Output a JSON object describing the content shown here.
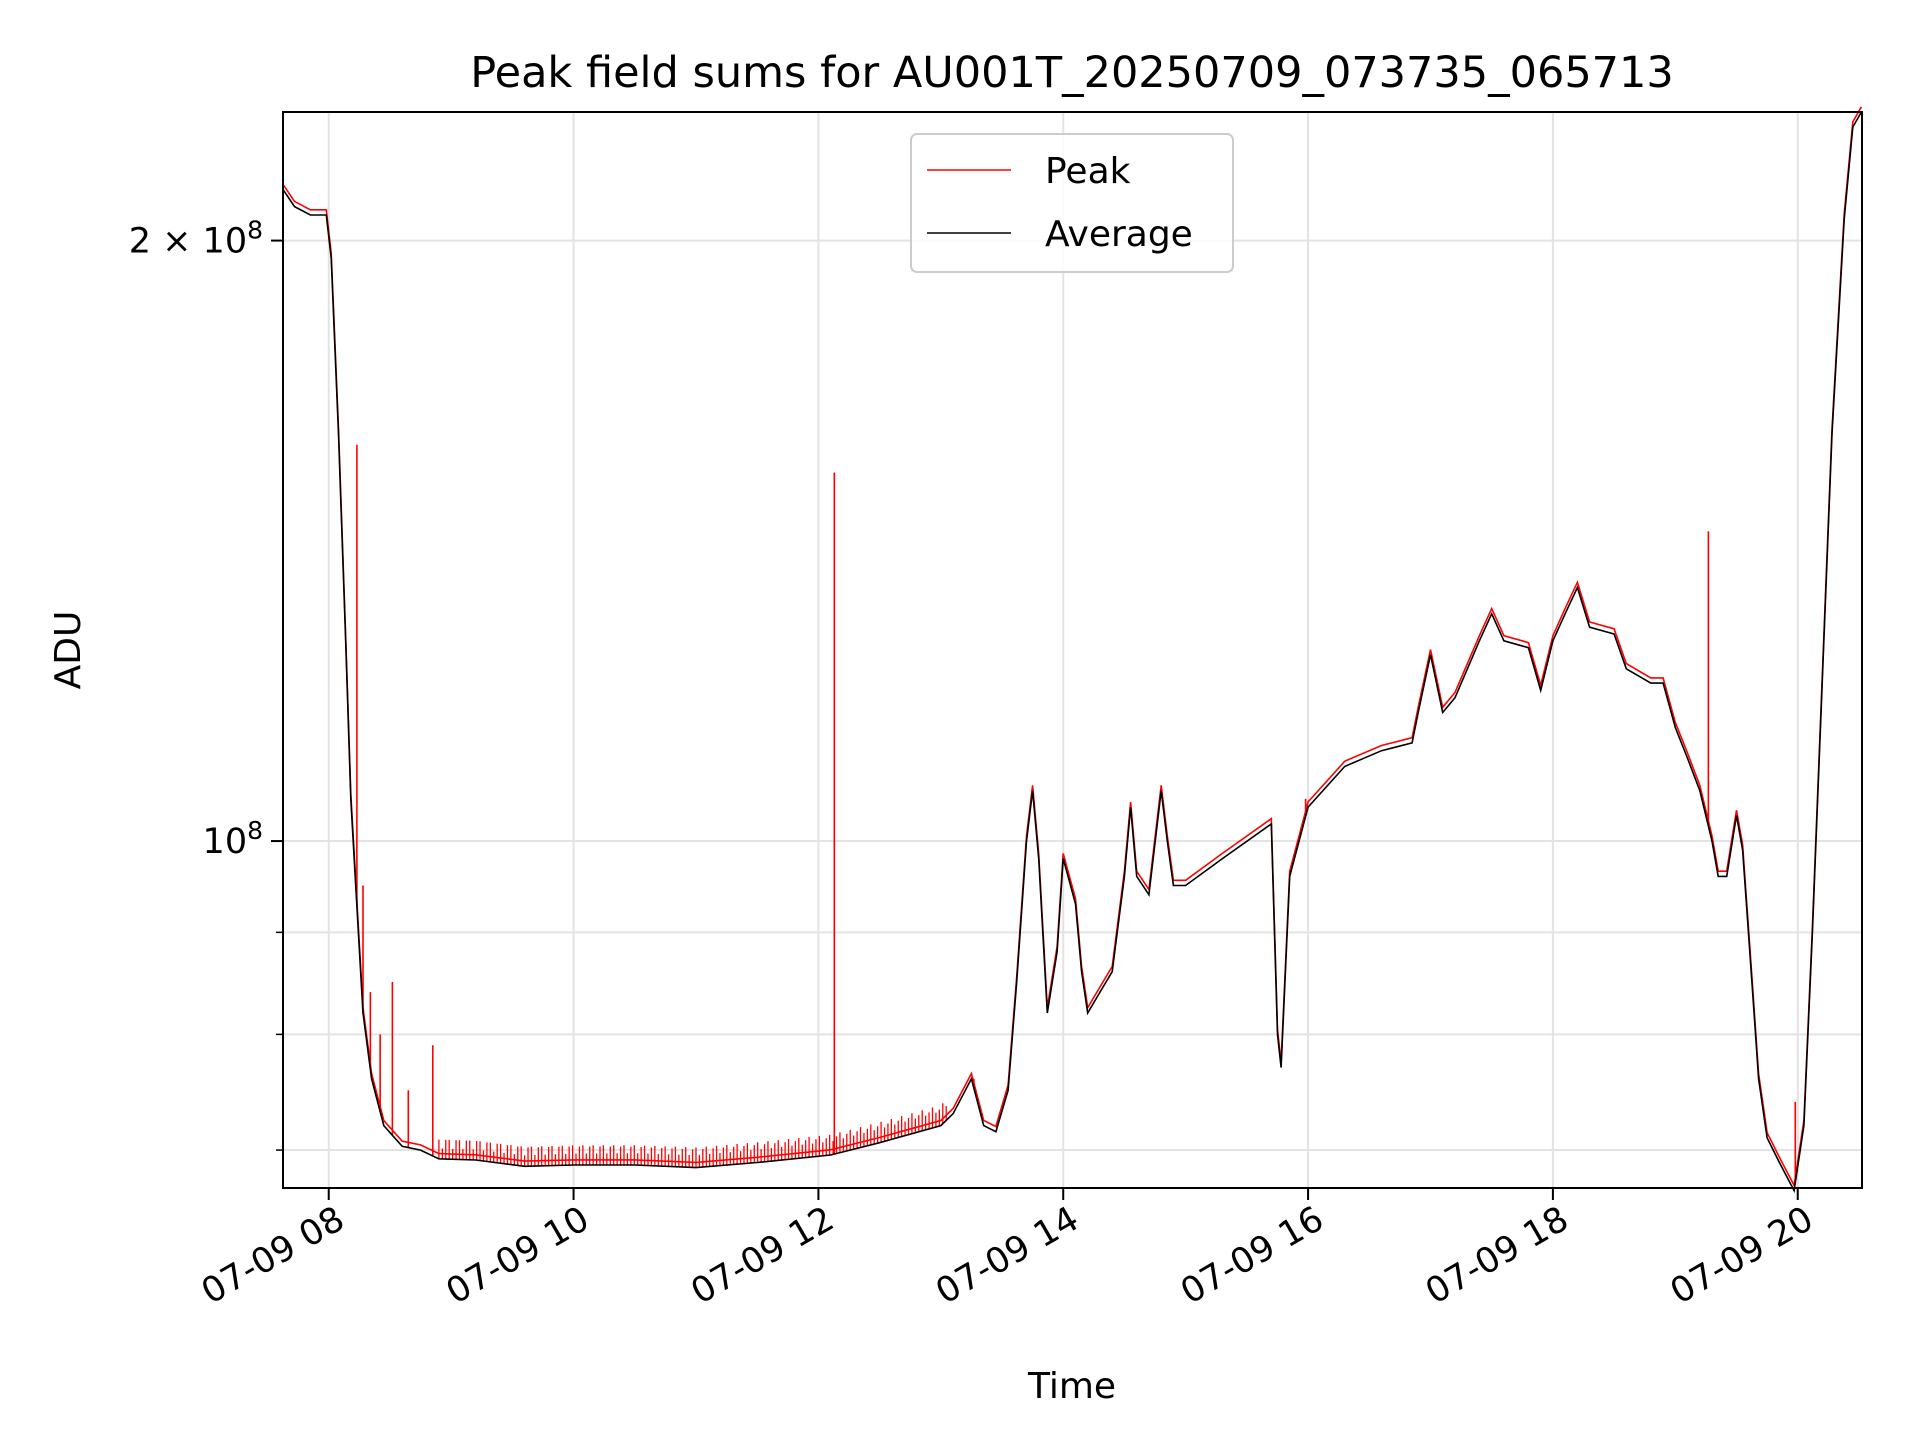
{
  "chart_data": {
    "type": "line",
    "title": "Peak field sums for AU001T_20250709_073735_065713",
    "xlabel": "Time",
    "ylabel": "ADU",
    "y_scale": "log",
    "grid": true,
    "legend": {
      "position": "upper-center",
      "entries": [
        "Peak",
        "Average"
      ]
    },
    "x_ticks": [
      {
        "hour": 8,
        "label": "07-09 08"
      },
      {
        "hour": 10,
        "label": "07-09 10"
      },
      {
        "hour": 12,
        "label": "07-09 12"
      },
      {
        "hour": 14,
        "label": "07-09 14"
      },
      {
        "hour": 16,
        "label": "07-09 16"
      },
      {
        "hour": 18,
        "label": "07-09 18"
      },
      {
        "hour": 20,
        "label": "07-09 20"
      }
    ],
    "y_ticks": [
      {
        "value": 100000000,
        "label_base": "10",
        "label_exp": "8"
      },
      {
        "value": 200000000,
        "label_base": "2 × 10",
        "label_exp": "8"
      }
    ],
    "y_minor_ticks": [
      70000000,
      80000000,
      90000000
    ],
    "xlim_hours": [
      7.6264,
      20.525
    ],
    "ylim": [
      67000000,
      232000000
    ],
    "series": [
      {
        "name": "Average",
        "color": "#000000",
        "points": [
          [
            7.63,
            212000000
          ],
          [
            7.72,
            208000000
          ],
          [
            7.85,
            206000000
          ],
          [
            7.98,
            206000000
          ],
          [
            8.02,
            196000000
          ],
          [
            8.08,
            160000000
          ],
          [
            8.14,
            125000000
          ],
          [
            8.18,
            105000000
          ],
          [
            8.22,
            95000000
          ],
          [
            8.28,
            82000000
          ],
          [
            8.35,
            76000000
          ],
          [
            8.45,
            72000000
          ],
          [
            8.6,
            70300000
          ],
          [
            8.75,
            70000000
          ],
          [
            8.9,
            69300000
          ],
          [
            9.2,
            69200000
          ],
          [
            9.6,
            68700000
          ],
          [
            10.0,
            68800000
          ],
          [
            10.5,
            68800000
          ],
          [
            11.0,
            68600000
          ],
          [
            11.5,
            69000000
          ],
          [
            12.1,
            69600000
          ],
          [
            12.5,
            70600000
          ],
          [
            13.0,
            72000000
          ],
          [
            13.1,
            73000000
          ],
          [
            13.25,
            76000000
          ],
          [
            13.35,
            72000000
          ],
          [
            13.45,
            71500000
          ],
          [
            13.55,
            75000000
          ],
          [
            13.62,
            85000000
          ],
          [
            13.7,
            100000000
          ],
          [
            13.75,
            106000000
          ],
          [
            13.8,
            98000000
          ],
          [
            13.87,
            82000000
          ],
          [
            13.95,
            88000000
          ],
          [
            14.0,
            98000000
          ],
          [
            14.1,
            93000000
          ],
          [
            14.15,
            86000000
          ],
          [
            14.2,
            82000000
          ],
          [
            14.3,
            84000000
          ],
          [
            14.4,
            86000000
          ],
          [
            14.5,
            96000000
          ],
          [
            14.55,
            104000000
          ],
          [
            14.6,
            96000000
          ],
          [
            14.7,
            94000000
          ],
          [
            14.8,
            106000000
          ],
          [
            14.85,
            100000000
          ],
          [
            14.9,
            95000000
          ],
          [
            15.0,
            95000000
          ],
          [
            15.3,
            98000000
          ],
          [
            15.7,
            102000000
          ],
          [
            15.75,
            80000000
          ],
          [
            15.78,
            77000000
          ],
          [
            15.85,
            96000000
          ],
          [
            16.0,
            104000000
          ],
          [
            16.3,
            109000000
          ],
          [
            16.6,
            111000000
          ],
          [
            16.85,
            112000000
          ],
          [
            16.9,
            116000000
          ],
          [
            17.0,
            124000000
          ],
          [
            17.1,
            116000000
          ],
          [
            17.2,
            118000000
          ],
          [
            17.4,
            126000000
          ],
          [
            17.5,
            130000000
          ],
          [
            17.6,
            126000000
          ],
          [
            17.8,
            125000000
          ],
          [
            17.9,
            119000000
          ],
          [
            18.0,
            126000000
          ],
          [
            18.1,
            130000000
          ],
          [
            18.2,
            134000000
          ],
          [
            18.3,
            128000000
          ],
          [
            18.5,
            127000000
          ],
          [
            18.6,
            122000000
          ],
          [
            18.8,
            120000000
          ],
          [
            18.9,
            120000000
          ],
          [
            19.0,
            114000000
          ],
          [
            19.1,
            110000000
          ],
          [
            19.2,
            106000000
          ],
          [
            19.3,
            100000000
          ],
          [
            19.35,
            96000000
          ],
          [
            19.42,
            96000000
          ],
          [
            19.5,
            103000000
          ],
          [
            19.55,
            99000000
          ],
          [
            19.62,
            86000000
          ],
          [
            19.68,
            76000000
          ],
          [
            19.75,
            71000000
          ],
          [
            19.85,
            69000000
          ],
          [
            19.97,
            66800000
          ],
          [
            20.05,
            72000000
          ],
          [
            20.12,
            90000000
          ],
          [
            20.2,
            120000000
          ],
          [
            20.28,
            160000000
          ],
          [
            20.38,
            205000000
          ],
          [
            20.45,
            228000000
          ],
          [
            20.52,
            232000000
          ]
        ]
      },
      {
        "name": "Peak",
        "color": "#ff0000",
        "spikes": [
          [
            8.23,
            158000000
          ],
          [
            8.28,
            95000000
          ],
          [
            8.34,
            84000000
          ],
          [
            8.42,
            80000000
          ],
          [
            8.52,
            85000000
          ],
          [
            8.65,
            75000000
          ],
          [
            8.85,
            79000000
          ],
          [
            12.13,
            153000000
          ],
          [
            13.27,
            76000000
          ],
          [
            15.98,
            105000000
          ],
          [
            19.27,
            143000000
          ],
          [
            19.98,
            74000000
          ]
        ]
      }
    ]
  }
}
